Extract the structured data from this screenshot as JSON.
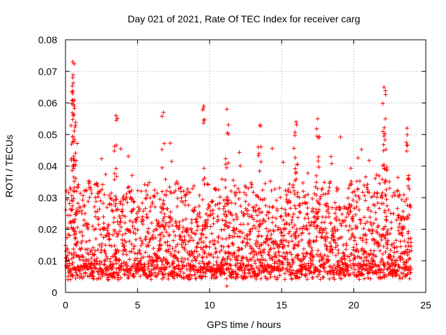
{
  "chart_data": {
    "type": "scatter",
    "title": "Day 021 of 2021, Rate Of TEC Index for receiver carg",
    "xlabel": "GPS time / hours",
    "ylabel": "ROTI / TECUs",
    "xlim": [
      0,
      25
    ],
    "ylim": [
      0,
      0.08
    ],
    "x_ticks": [
      0,
      5,
      10,
      15,
      20,
      25
    ],
    "x_tick_labels": [
      "0",
      "5",
      "10",
      "15",
      "20",
      "25"
    ],
    "y_ticks": [
      0,
      0.01,
      0.02,
      0.03,
      0.04,
      0.05,
      0.06,
      0.07,
      0.08
    ],
    "y_tick_labels": [
      "0",
      "0.01",
      "0.02",
      "0.03",
      "0.04",
      "0.05",
      "0.06",
      "0.07",
      "0.08"
    ],
    "grid": true,
    "marker": "+",
    "series_color": "#ff0000",
    "x_range_observed": [
      0,
      24
    ],
    "typical_y_range": [
      0.004,
      0.03
    ],
    "peaks": [
      {
        "x": 0.5,
        "y": 0.073
      },
      {
        "x": 0.5,
        "y": 0.068
      },
      {
        "x": 0.5,
        "y": 0.063
      },
      {
        "x": 0.6,
        "y": 0.059
      },
      {
        "x": 0.7,
        "y": 0.053
      },
      {
        "x": 3.5,
        "y": 0.056
      },
      {
        "x": 6.8,
        "y": 0.057
      },
      {
        "x": 9.6,
        "y": 0.059
      },
      {
        "x": 11.2,
        "y": 0.058
      },
      {
        "x": 13.5,
        "y": 0.053
      },
      {
        "x": 16.0,
        "y": 0.054
      },
      {
        "x": 17.5,
        "y": 0.055
      },
      {
        "x": 22.1,
        "y": 0.065
      },
      {
        "x": 22.2,
        "y": 0.055
      },
      {
        "x": 23.7,
        "y": 0.052
      }
    ],
    "minimum": {
      "x": 11.2,
      "y": 0.002
    }
  }
}
